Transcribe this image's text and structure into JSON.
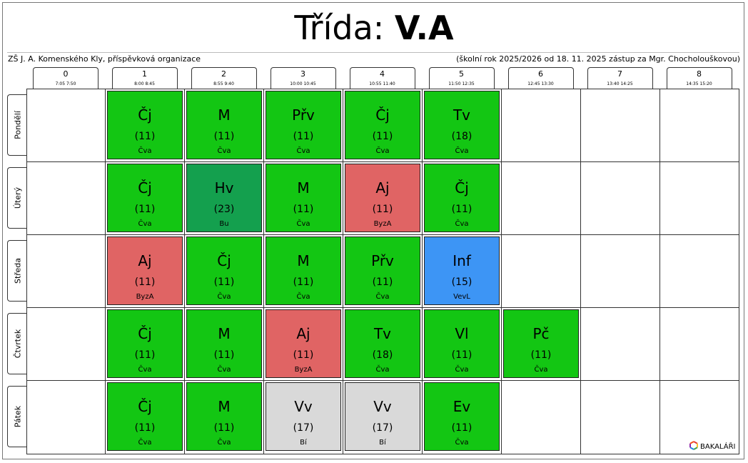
{
  "header": {
    "title_prefix": "Třída:",
    "title_class": "V.A",
    "school": "ZŠ J. A. Komenského Kly, příspěvková organizace",
    "info": "(školní rok 2025/2026 od 18. 11. 2025 zástup za Mgr. Chocholouškovou)"
  },
  "periods": [
    {
      "num": "0",
      "time": "7:05  7:50"
    },
    {
      "num": "1",
      "time": "8:00  8:45"
    },
    {
      "num": "2",
      "time": "8:55  9:40"
    },
    {
      "num": "3",
      "time": "10:00 10:45"
    },
    {
      "num": "4",
      "time": "10:55 11:40"
    },
    {
      "num": "5",
      "time": "11:50 12:35"
    },
    {
      "num": "6",
      "time": "12:45 13:30"
    },
    {
      "num": "7",
      "time": "13:40 14:25"
    },
    {
      "num": "8",
      "time": "14:35 15:20"
    }
  ],
  "days": [
    {
      "label": "Pondělí"
    },
    {
      "label": "Úterý"
    },
    {
      "label": "Středa"
    },
    {
      "label": "Čtvrtek"
    },
    {
      "label": "Pátek"
    }
  ],
  "colors": {
    "regular": "#13c613",
    "music": "#14a04e",
    "english": "#e06464",
    "informatics": "#3d95f5",
    "optional": "#d9d9d9"
  },
  "lessons": [
    {
      "day": 0,
      "period": 1,
      "subject": "Čj",
      "room": "(11)",
      "teacher": "Čva",
      "color": "#13c613"
    },
    {
      "day": 0,
      "period": 2,
      "subject": "M",
      "room": "(11)",
      "teacher": "Čva",
      "color": "#13c613"
    },
    {
      "day": 0,
      "period": 3,
      "subject": "Přv",
      "room": "(11)",
      "teacher": "Čva",
      "color": "#13c613"
    },
    {
      "day": 0,
      "period": 4,
      "subject": "Čj",
      "room": "(11)",
      "teacher": "Čva",
      "color": "#13c613"
    },
    {
      "day": 0,
      "period": 5,
      "subject": "Tv",
      "room": "(18)",
      "teacher": "Čva",
      "color": "#13c613"
    },
    {
      "day": 1,
      "period": 1,
      "subject": "Čj",
      "room": "(11)",
      "teacher": "Čva",
      "color": "#13c613"
    },
    {
      "day": 1,
      "period": 2,
      "subject": "Hv",
      "room": "(23)",
      "teacher": "Bu",
      "color": "#14a04e"
    },
    {
      "day": 1,
      "period": 3,
      "subject": "M",
      "room": "(11)",
      "teacher": "Čva",
      "color": "#13c613"
    },
    {
      "day": 1,
      "period": 4,
      "subject": "Aj",
      "room": "(11)",
      "teacher": "ByzA",
      "color": "#e06464"
    },
    {
      "day": 1,
      "period": 5,
      "subject": "Čj",
      "room": "(11)",
      "teacher": "Čva",
      "color": "#13c613"
    },
    {
      "day": 2,
      "period": 1,
      "subject": "Aj",
      "room": "(11)",
      "teacher": "ByzA",
      "color": "#e06464"
    },
    {
      "day": 2,
      "period": 2,
      "subject": "Čj",
      "room": "(11)",
      "teacher": "Čva",
      "color": "#13c613"
    },
    {
      "day": 2,
      "period": 3,
      "subject": "M",
      "room": "(11)",
      "teacher": "Čva",
      "color": "#13c613"
    },
    {
      "day": 2,
      "period": 4,
      "subject": "Přv",
      "room": "(11)",
      "teacher": "Čva",
      "color": "#13c613"
    },
    {
      "day": 2,
      "period": 5,
      "subject": "Inf",
      "room": "(15)",
      "teacher": "VevL",
      "color": "#3d95f5"
    },
    {
      "day": 3,
      "period": 1,
      "subject": "Čj",
      "room": "(11)",
      "teacher": "Čva",
      "color": "#13c613"
    },
    {
      "day": 3,
      "period": 2,
      "subject": "M",
      "room": "(11)",
      "teacher": "Čva",
      "color": "#13c613"
    },
    {
      "day": 3,
      "period": 3,
      "subject": "Aj",
      "room": "(11)",
      "teacher": "ByzA",
      "color": "#e06464"
    },
    {
      "day": 3,
      "period": 4,
      "subject": "Tv",
      "room": "(18)",
      "teacher": "Čva",
      "color": "#13c613"
    },
    {
      "day": 3,
      "period": 5,
      "subject": "Vl",
      "room": "(11)",
      "teacher": "Čva",
      "color": "#13c613"
    },
    {
      "day": 3,
      "period": 6,
      "subject": "Pč",
      "room": "(11)",
      "teacher": "Čva",
      "color": "#13c613"
    },
    {
      "day": 4,
      "period": 1,
      "subject": "Čj",
      "room": "(11)",
      "teacher": "Čva",
      "color": "#13c613"
    },
    {
      "day": 4,
      "period": 2,
      "subject": "M",
      "room": "(11)",
      "teacher": "Čva",
      "color": "#13c613"
    },
    {
      "day": 4,
      "period": 3,
      "subject": "Vv",
      "room": "(17)",
      "teacher": "Bí",
      "color": "#d9d9d9"
    },
    {
      "day": 4,
      "period": 4,
      "subject": "Vv",
      "room": "(17)",
      "teacher": "Bí",
      "color": "#d9d9d9"
    },
    {
      "day": 4,
      "period": 5,
      "subject": "Ev",
      "room": "(11)",
      "teacher": "Čva",
      "color": "#13c613"
    }
  ],
  "logo": {
    "text": "BAKALÁŘI",
    "icon": "bakalari-logo-icon"
  }
}
